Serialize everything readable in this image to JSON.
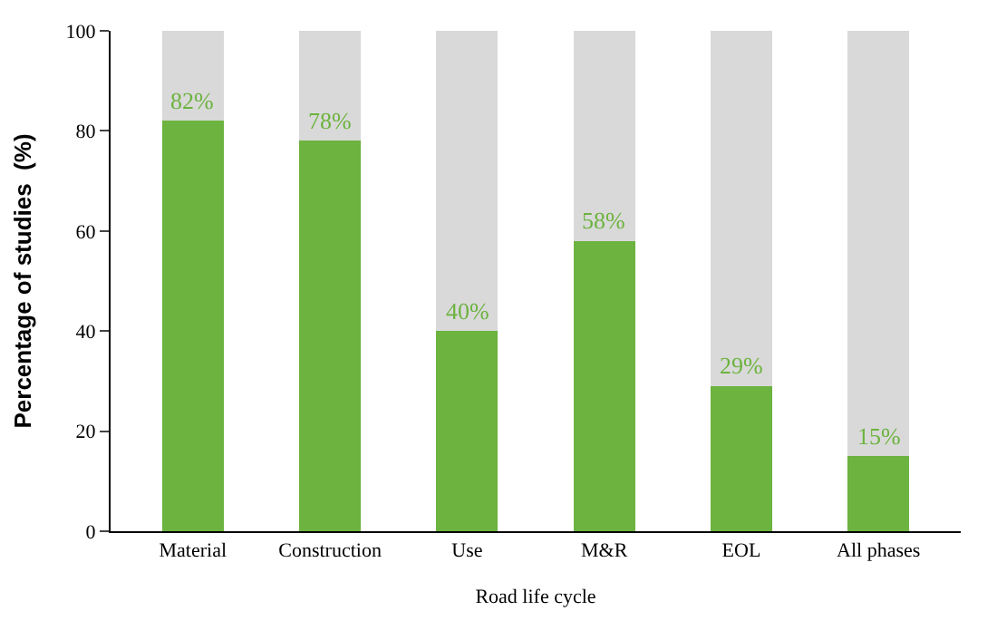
{
  "chart_data": {
    "type": "bar",
    "xlabel": "Road life cycle",
    "ylabel": "Percentage of studies  (%)",
    "categories": [
      "Material",
      "Construction",
      "Use",
      "M&R",
      "EOL",
      "All phases"
    ],
    "stacked": true,
    "series": [
      {
        "color": "#6cb33f",
        "values": [
          82,
          78,
          40,
          58,
          29,
          15
        ],
        "value_labels": [
          "82%",
          "78%",
          "40%",
          "58%",
          "29%",
          "15%"
        ]
      },
      {
        "color": "#d9d9d9",
        "values": [
          18,
          22,
          60,
          42,
          71,
          85
        ]
      }
    ],
    "ylim": [
      0,
      100
    ],
    "yticks": [
      0,
      20,
      40,
      60,
      80,
      100
    ]
  }
}
